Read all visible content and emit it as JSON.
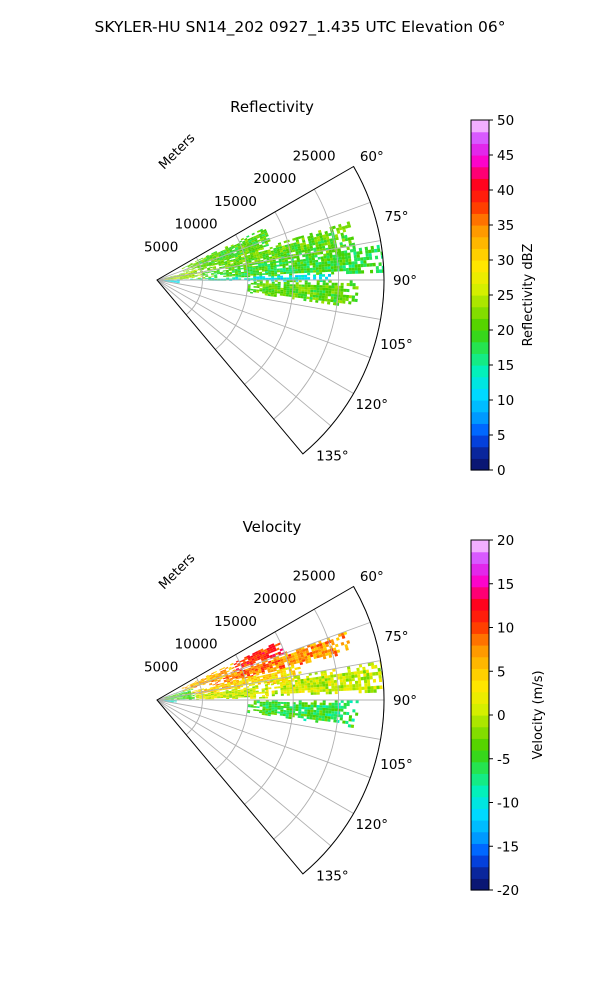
{
  "suptitle": "SKYLER-HU  SN14_202  0927_1.435 UTC Elevation 06°",
  "chart_data": [
    {
      "type": "heatmap",
      "subtype": "polar-sector (radar PPI)",
      "title": "Reflectivity",
      "radial_label": "Meters",
      "r_ticks": [
        5000,
        10000,
        15000,
        20000,
        25000
      ],
      "r_max": 25000,
      "theta_ticks": [
        "60°",
        "75°",
        "90°",
        "105°",
        "120°",
        "135°"
      ],
      "theta_tick_values": [
        60,
        75,
        90,
        105,
        120,
        135
      ],
      "theta_range": [
        60,
        140
      ],
      "grid": true,
      "colorbar": {
        "label": "Reflectivity dBZ",
        "range": [
          0,
          50
        ],
        "ticks": [
          0,
          5,
          10,
          15,
          20,
          25,
          30,
          35,
          40,
          45,
          50
        ]
      },
      "echo_regions": [
        {
          "az": [
            64,
            75
          ],
          "range": [
            3000,
            13000
          ],
          "value": 21
        },
        {
          "az": [
            73,
            82
          ],
          "range": [
            5000,
            22000
          ],
          "value": 22
        },
        {
          "az": [
            81,
            88
          ],
          "range": [
            5000,
            25000
          ],
          "value": 20
        },
        {
          "az": [
            88,
            90
          ],
          "range": [
            3000,
            19000
          ],
          "value": 14
        },
        {
          "az": [
            90,
            98
          ],
          "range": [
            10000,
            22000
          ],
          "value": 22
        },
        {
          "az": [
            75,
            88
          ],
          "range": [
            200,
            5000
          ],
          "value": 24
        },
        {
          "az": [
            88,
            99
          ],
          "range": [
            200,
            2500
          ],
          "value": 12
        }
      ]
    },
    {
      "type": "heatmap",
      "subtype": "polar-sector (radar PPI)",
      "title": "Velocity",
      "radial_label": "Meters",
      "r_ticks": [
        5000,
        10000,
        15000,
        20000,
        25000
      ],
      "r_max": 25000,
      "theta_ticks": [
        "60°",
        "75°",
        "90°",
        "105°",
        "120°",
        "135°"
      ],
      "theta_tick_values": [
        60,
        75,
        90,
        105,
        120,
        135
      ],
      "theta_range": [
        60,
        140
      ],
      "grid": true,
      "colorbar": {
        "label": "Velocity (m/s)",
        "range": [
          -20,
          20
        ],
        "ticks": [
          -20,
          -15,
          -10,
          -5,
          0,
          5,
          10,
          15,
          20
        ]
      },
      "echo_regions": [
        {
          "az": [
            64,
            70
          ],
          "range": [
            9000,
            15000
          ],
          "value": 12
        },
        {
          "az": [
            64,
            72
          ],
          "range": [
            3000,
            9000
          ],
          "value": 6
        },
        {
          "az": [
            70,
            76
          ],
          "range": [
            6000,
            22000
          ],
          "value": 9
        },
        {
          "az": [
            76,
            82
          ],
          "range": [
            3000,
            16000
          ],
          "value": 5
        },
        {
          "az": [
            80,
            88
          ],
          "range": [
            12000,
            25000
          ],
          "value": 2
        },
        {
          "az": [
            82,
            89
          ],
          "range": [
            3000,
            12000
          ],
          "value": 1
        },
        {
          "az": [
            90,
            98
          ],
          "range": [
            10000,
            22000
          ],
          "value": -4
        },
        {
          "az": [
            72,
            90
          ],
          "range": [
            200,
            4000
          ],
          "value": -4
        },
        {
          "az": [
            88,
            99
          ],
          "range": [
            200,
            2000
          ],
          "value": -10
        }
      ]
    }
  ]
}
